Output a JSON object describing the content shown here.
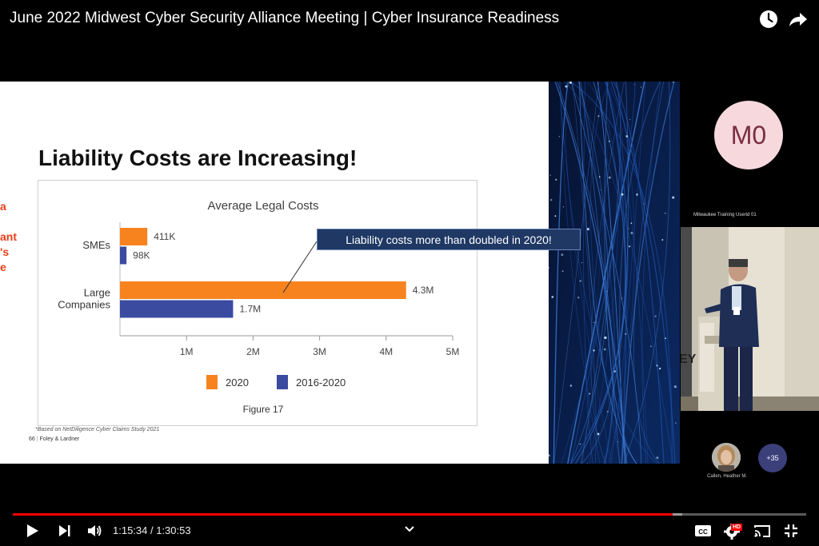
{
  "video": {
    "title": "June 2022 Midwest Cyber Security Alliance Meeting | Cyber Insurance Readiness",
    "current_time": "1:15:34",
    "duration": "1:30:53",
    "time_display": "1:15:34 / 1:30:53",
    "progress_fraction": 0.8315,
    "buffer_fraction": 0.8435,
    "hd_badge": "HD"
  },
  "icons": {
    "watch_later": "clock-icon",
    "share": "share-arrow-icon",
    "play": "play-icon",
    "next": "next-track-icon",
    "volume": "volume-icon",
    "chevron": "chevron-down-icon",
    "captions": "cc-icon",
    "settings": "gear-icon",
    "cast": "cast-icon",
    "exit_fullscreen": "exit-fullscreen-icon"
  },
  "slide": {
    "title": "Liability Costs are Increasing!",
    "cut_text": [
      "a",
      "ant",
      "'s",
      "e"
    ],
    "footnote": "*Based on NetDiligence Cyber Claims Study 2021",
    "page_number": "66",
    "footer_brand": "Foley & Lardner",
    "callout": "Liability costs more than doubled in 2020!",
    "figure_caption": "Figure 17"
  },
  "chart_data": {
    "type": "bar",
    "orientation": "horizontal",
    "title": "Average Legal Costs",
    "categories": [
      "SMEs",
      "Large Companies"
    ],
    "category_lines": [
      [
        "SMEs"
      ],
      [
        "Large",
        "Companies"
      ]
    ],
    "series": [
      {
        "name": "2020",
        "values": [
          411000,
          4300000
        ],
        "labels": [
          "411K",
          "4.3M"
        ],
        "color": "#f7831f"
      },
      {
        "name": "2016-2020",
        "values": [
          98000,
          1700000
        ],
        "labels": [
          "98K",
          "1.7M"
        ],
        "color": "#3a4ba0"
      }
    ],
    "xlim": [
      0,
      5000000
    ],
    "xticks": [
      1000000,
      2000000,
      3000000,
      4000000,
      5000000
    ],
    "xtick_labels": [
      "1M",
      "2M",
      "3M",
      "4M",
      "5M"
    ],
    "legend_position": "bottom",
    "grid": false
  },
  "participants": {
    "speaker_initials": "M0",
    "speaker_avatar_color": "#f6d8dd",
    "camera_name": "Milwaukee Training Userid 01",
    "other_name": "Callen, Heather M.",
    "more_count": "+35"
  }
}
